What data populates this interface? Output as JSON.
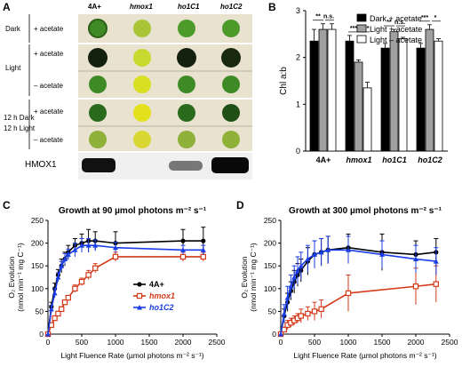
{
  "figure": {
    "panel_a": {
      "letter": "A",
      "columns": [
        "4A+",
        "hmox1",
        "ho1C1",
        "ho1C2"
      ],
      "rows": [
        {
          "condition": "Dark",
          "treatment": "+ acetate"
        },
        {
          "condition": "Light",
          "treatment": "+ acetate"
        },
        {
          "condition": "",
          "treatment": "– acetate"
        },
        {
          "condition": "12 h Dark",
          "treatment": "+ acetate"
        },
        {
          "condition": "12 h Light",
          "treatment": "– acetate"
        }
      ],
      "blot_label": "HMOX1",
      "spot_colors": {
        "dark_green": "#1f5a1a",
        "green": "#4b9a2a",
        "yellow_green": "#b9cf33",
        "yellow": "#e7e21e",
        "plate_bg": "#e8e2cf",
        "row_sep": "#b8b2a0"
      }
    },
    "panel_b": {
      "letter": "B"
    },
    "panel_c": {
      "letter": "C"
    },
    "panel_d": {
      "letter": "D"
    }
  },
  "chart_data": [
    {
      "type": "bar",
      "panel": "B",
      "ylabel": "Chl a:b",
      "ylim": [
        0,
        3
      ],
      "yticks": [
        "0",
        "1",
        "2",
        "3"
      ],
      "categories": [
        "4A+",
        "hmox1",
        "ho1C1",
        "ho1C2"
      ],
      "category_italic_prefix": [
        "",
        "hmox1",
        "ho1",
        "ho1"
      ],
      "category_suffix": [
        "4A+",
        "",
        "C1",
        "C2"
      ],
      "series": [
        {
          "name": "Dark + acetate",
          "color": "#000000",
          "values": [
            2.35,
            2.35,
            2.2,
            2.2
          ],
          "errors": [
            0.25,
            0.12,
            0.1,
            0.1
          ]
        },
        {
          "name": "Light + acetate",
          "color": "#a0a0a0",
          "values": [
            2.6,
            1.9,
            2.55,
            2.6
          ],
          "errors": [
            0.12,
            0.05,
            0.05,
            0.1
          ]
        },
        {
          "name": "Light – acetate",
          "color": "#ffffff",
          "values": [
            2.6,
            1.35,
            2.4,
            2.35
          ],
          "errors": [
            0.12,
            0.12,
            0.03,
            0.05
          ]
        }
      ],
      "significance": [
        {
          "group": 0,
          "marks": [
            "**",
            "n.s."
          ]
        },
        {
          "group": 1,
          "marks": [
            "***",
            "****"
          ]
        },
        {
          "group": 2,
          "marks": [
            "**",
            "n.s."
          ]
        },
        {
          "group": 3,
          "marks": [
            "***",
            "*"
          ]
        }
      ],
      "legend_position": "top-right"
    },
    {
      "type": "line",
      "panel": "C",
      "title": "Growth at 90 µmol photons m⁻² s⁻¹",
      "xlabel": "Light Fluence Rate (µmol photons m⁻² s⁻¹)",
      "ylabel": "O₂ Evolution",
      "ylabel2": "(nmol min⁻¹ mg C⁻¹)",
      "xlim": [
        0,
        2500
      ],
      "ylim": [
        0,
        250
      ],
      "xticks": [
        0,
        500,
        1000,
        1500,
        2000,
        2500
      ],
      "yticks": [
        0,
        50,
        100,
        150,
        200,
        250
      ],
      "legend_position": "lower-right",
      "series": [
        {
          "name": "4A+",
          "color": "#000000",
          "marker": "circle",
          "x": [
            0,
            50,
            100,
            150,
            200,
            250,
            300,
            400,
            500,
            600,
            700,
            1000,
            2000,
            2300
          ],
          "y": [
            0,
            60,
            100,
            130,
            150,
            165,
            180,
            195,
            200,
            205,
            205,
            200,
            205,
            205
          ],
          "err": [
            0,
            10,
            12,
            12,
            15,
            15,
            15,
            15,
            20,
            25,
            20,
            25,
            25,
            30
          ]
        },
        {
          "name": "hmox1",
          "color": "#d43a1a",
          "marker": "square",
          "x": [
            0,
            50,
            100,
            150,
            200,
            250,
            300,
            400,
            500,
            600,
            700,
            1000,
            2000,
            2300
          ],
          "y": [
            0,
            20,
            35,
            45,
            55,
            70,
            80,
            100,
            115,
            130,
            145,
            170,
            170,
            170
          ],
          "err": [
            0,
            5,
            5,
            5,
            5,
            5,
            5,
            8,
            8,
            10,
            10,
            10,
            10,
            10
          ]
        },
        {
          "name": "ho1C2",
          "color": "#1a3de6",
          "marker": "triangle",
          "x": [
            0,
            50,
            100,
            150,
            200,
            250,
            300,
            400,
            500,
            600,
            700,
            1000,
            2000,
            2300
          ],
          "y": [
            0,
            55,
            90,
            125,
            150,
            165,
            175,
            185,
            195,
            195,
            195,
            190,
            185,
            185
          ],
          "err": [
            0,
            8,
            10,
            10,
            10,
            12,
            12,
            15,
            15,
            15,
            12,
            12,
            10,
            10
          ]
        }
      ]
    },
    {
      "type": "line",
      "panel": "D",
      "title": "Growth at 300 µmol photons m⁻² s⁻¹",
      "xlabel": "Light Fluence Rate (µmol photons m⁻² s⁻¹)",
      "ylabel": "O₂ Evolution",
      "ylabel2": "(nmol min⁻¹ mg C⁻¹)",
      "xlim": [
        0,
        2500
      ],
      "ylim": [
        0,
        250
      ],
      "xticks": [
        0,
        500,
        1000,
        1500,
        2000,
        2500
      ],
      "yticks": [
        0,
        50,
        100,
        150,
        200,
        250
      ],
      "series": [
        {
          "name": "4A+",
          "color": "#000000",
          "marker": "circle",
          "x": [
            0,
            50,
            100,
            150,
            200,
            250,
            300,
            400,
            500,
            600,
            700,
            1000,
            1500,
            2000,
            2300
          ],
          "y": [
            0,
            40,
            70,
            95,
            115,
            130,
            140,
            160,
            175,
            180,
            185,
            190,
            180,
            175,
            180
          ],
          "err": [
            0,
            15,
            20,
            20,
            25,
            25,
            25,
            30,
            30,
            30,
            30,
            30,
            40,
            30,
            30
          ]
        },
        {
          "name": "hmox1",
          "color": "#d43a1a",
          "marker": "square",
          "x": [
            0,
            50,
            100,
            150,
            200,
            250,
            300,
            400,
            500,
            600,
            1000,
            2000,
            2300
          ],
          "y": [
            0,
            10,
            20,
            25,
            30,
            35,
            40,
            45,
            50,
            55,
            90,
            105,
            110
          ],
          "err": [
            0,
            5,
            10,
            10,
            10,
            10,
            15,
            15,
            20,
            20,
            40,
            40,
            40
          ]
        },
        {
          "name": "ho1C2",
          "color": "#1a3de6",
          "marker": "triangle",
          "x": [
            0,
            50,
            100,
            150,
            200,
            250,
            300,
            400,
            500,
            600,
            700,
            1000,
            1500,
            2000,
            2300
          ],
          "y": [
            0,
            45,
            80,
            105,
            125,
            140,
            150,
            165,
            175,
            180,
            185,
            185,
            175,
            165,
            160
          ],
          "err": [
            0,
            20,
            25,
            25,
            25,
            30,
            30,
            30,
            30,
            30,
            30,
            30,
            30,
            30,
            30
          ]
        }
      ]
    }
  ]
}
